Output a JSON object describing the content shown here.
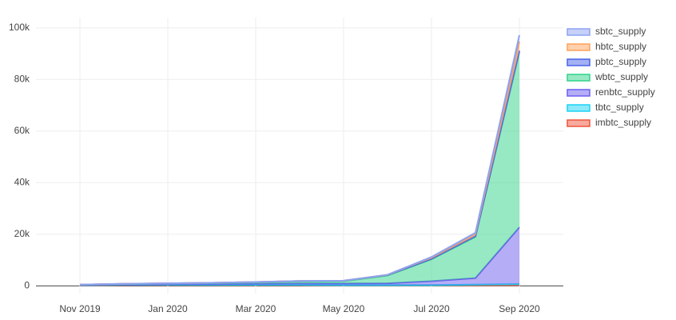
{
  "chart_data": {
    "type": "area",
    "x": [
      "2019-11",
      "2019-12",
      "2020-01",
      "2020-02",
      "2020-03",
      "2020-04",
      "2020-05",
      "2020-06",
      "2020-07",
      "2020-08",
      "2020-09"
    ],
    "xlim": [
      "2019-10",
      "2020-10"
    ],
    "xticks": [
      {
        "value": "2019-11",
        "label": "Nov 2019"
      },
      {
        "value": "2020-01",
        "label": "Jan 2020"
      },
      {
        "value": "2020-03",
        "label": "Mar 2020"
      },
      {
        "value": "2020-05",
        "label": "May 2020"
      },
      {
        "value": "2020-07",
        "label": "Jul 2020"
      },
      {
        "value": "2020-09",
        "label": "Sep 2020"
      }
    ],
    "ylim": [
      -3000,
      104000
    ],
    "yticks": [
      0,
      {
        "value": 20000,
        "label": "20k"
      },
      {
        "value": 40000,
        "label": "40k"
      },
      {
        "value": 60000,
        "label": "60k"
      },
      {
        "value": 80000,
        "label": "80k"
      },
      {
        "value": 100000,
        "label": "100k"
      }
    ],
    "grid": true,
    "legend": "right",
    "series": [
      {
        "name": "sbtc_supply",
        "color": "#8da2f2",
        "values": [
          0,
          0,
          0,
          0,
          0,
          0,
          0,
          0,
          200,
          500,
          2500
        ]
      },
      {
        "name": "hbtc_supply",
        "color": "#ffa15a",
        "values": [
          0,
          0,
          0,
          0,
          0,
          0,
          0,
          100,
          500,
          800,
          3500
        ]
      },
      {
        "name": "pbtc_supply",
        "color": "#4a63e8",
        "values": [
          100,
          100,
          100,
          100,
          100,
          200,
          200,
          200,
          200,
          300,
          500
        ]
      },
      {
        "name": "wbtc_supply",
        "color": "#2fd38a",
        "values": [
          100,
          200,
          300,
          400,
          600,
          800,
          900,
          3000,
          8500,
          16000,
          68000
        ]
      },
      {
        "name": "renbtc_supply",
        "color": "#6b5ef0",
        "values": [
          0,
          100,
          200,
          300,
          400,
          500,
          600,
          700,
          1500,
          2500,
          22000
        ]
      },
      {
        "name": "tbtc_supply",
        "color": "#19d3f3",
        "values": [
          0,
          0,
          0,
          0,
          0,
          0,
          0,
          0,
          0,
          200,
          400
        ]
      },
      {
        "name": "imbtc_supply",
        "color": "#ef553b",
        "values": [
          300,
          400,
          400,
          400,
          400,
          400,
          300,
          300,
          300,
          300,
          300
        ]
      }
    ]
  }
}
